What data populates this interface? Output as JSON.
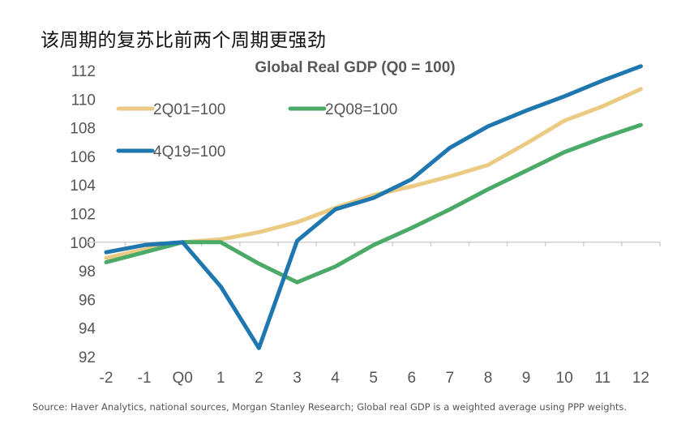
{
  "headline": "该周期的复苏比前两个周期更强劲",
  "source": "Source: Haver Analytics, national sources, Morgan Stanley Research; Global real GDP is a weighted average using PPP weights.",
  "chart_data": {
    "type": "line",
    "title": "Global Real GDP (Q0 = 100)",
    "xlabel": "",
    "ylabel": "",
    "categories": [
      "-2",
      "-1",
      "Q0",
      "1",
      "2",
      "3",
      "4",
      "5",
      "6",
      "7",
      "8",
      "9",
      "10",
      "11",
      "12"
    ],
    "ylim": [
      92,
      112
    ],
    "yticks": [
      112,
      110,
      108,
      106,
      104,
      102,
      100,
      98,
      96,
      94,
      92
    ],
    "baseline": 100,
    "grid": false,
    "legend_position": "top-left",
    "series": [
      {
        "name": "2Q01=100",
        "color": "#EBCB84",
        "values": [
          98.9,
          99.5,
          100.0,
          100.2,
          100.7,
          101.4,
          102.4,
          103.3,
          103.9,
          104.6,
          105.4,
          106.9,
          108.5,
          109.5,
          110.7
        ]
      },
      {
        "name": "2Q08=100",
        "color": "#4BAA68",
        "values": [
          98.6,
          99.3,
          100.0,
          100.0,
          98.5,
          97.2,
          98.3,
          99.8,
          101.0,
          102.3,
          103.7,
          105.0,
          106.3,
          107.3,
          108.2
        ]
      },
      {
        "name": "4Q19=100",
        "color": "#1F77B0",
        "values": [
          99.3,
          99.8,
          100.0,
          96.9,
          92.6,
          100.1,
          102.3,
          103.1,
          104.4,
          106.6,
          108.1,
          109.2,
          110.2,
          111.3,
          112.3
        ]
      }
    ]
  }
}
